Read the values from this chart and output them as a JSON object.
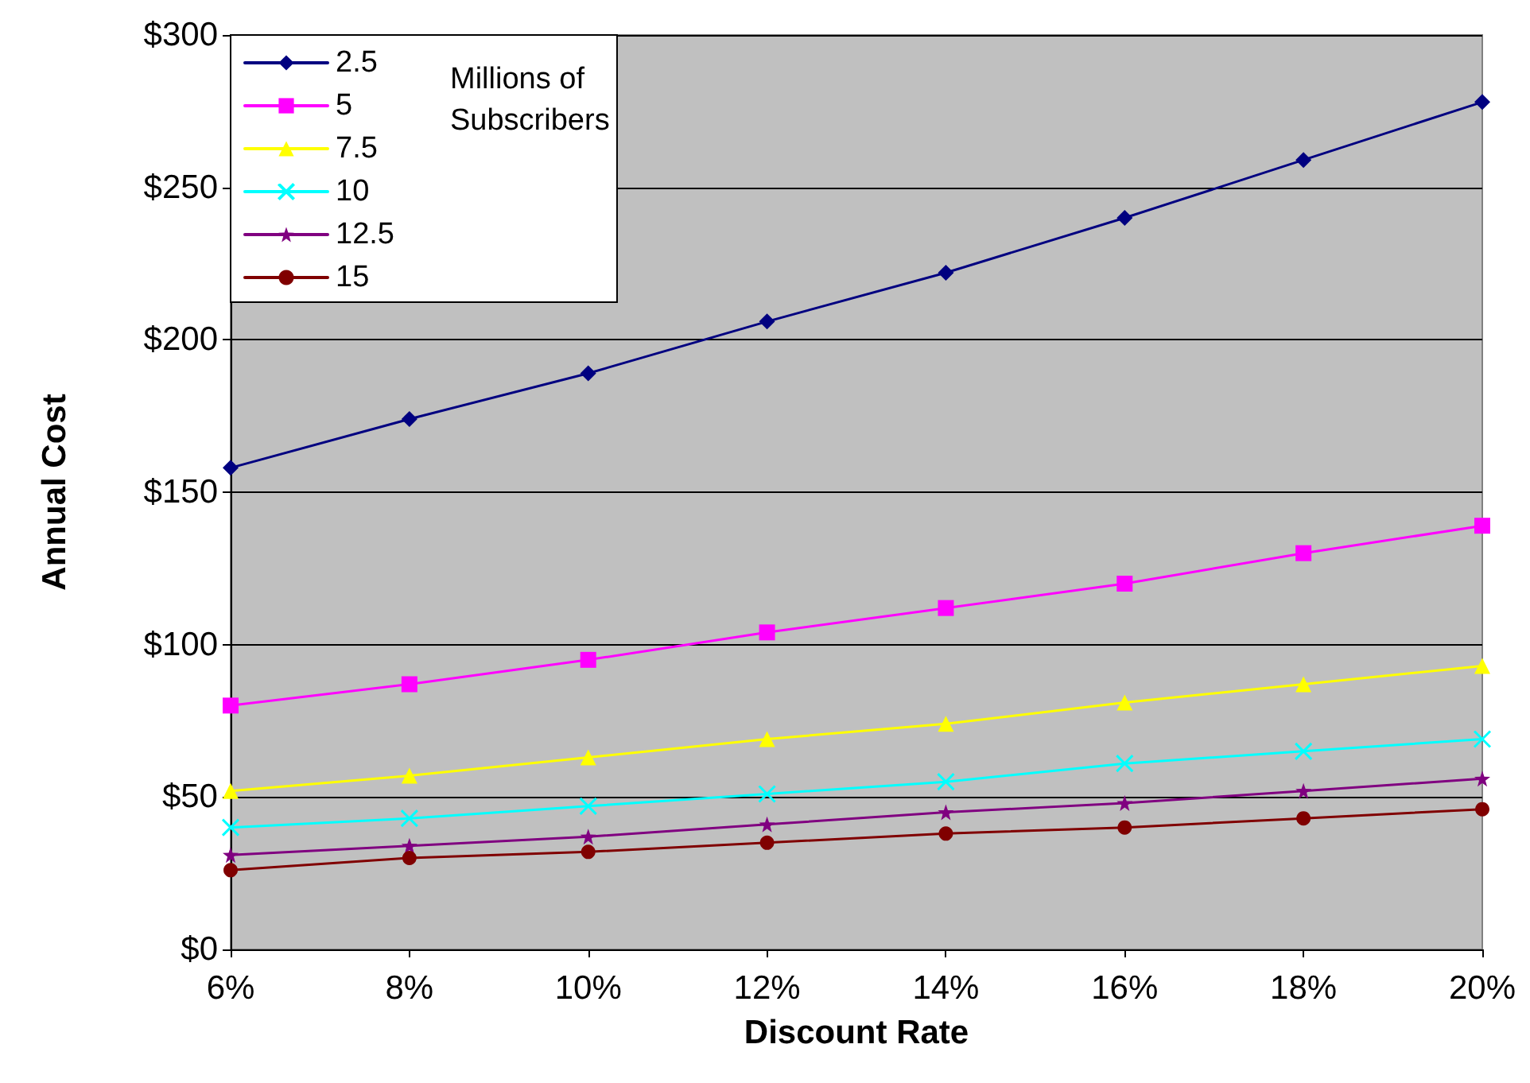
{
  "chart_data": {
    "type": "line",
    "xlabel": "Discount Rate",
    "ylabel": "Annual Cost",
    "legend_title": "Millions of Subscribers",
    "x": [
      6,
      8,
      10,
      12,
      14,
      16,
      18,
      20
    ],
    "xlim": [
      6,
      20
    ],
    "xticks": [
      {
        "value": 6,
        "label": "6%"
      },
      {
        "value": 8,
        "label": "8%"
      },
      {
        "value": 10,
        "label": "10%"
      },
      {
        "value": 12,
        "label": "12%"
      },
      {
        "value": 14,
        "label": "14%"
      },
      {
        "value": 16,
        "label": "16%"
      },
      {
        "value": 18,
        "label": "18%"
      },
      {
        "value": 20,
        "label": "20%"
      }
    ],
    "ylim": [
      0,
      300
    ],
    "yticks": [
      {
        "value": 0,
        "label": "$0"
      },
      {
        "value": 50,
        "label": "$50"
      },
      {
        "value": 100,
        "label": "$100"
      },
      {
        "value": 150,
        "label": "$150"
      },
      {
        "value": 200,
        "label": "$200"
      },
      {
        "value": 250,
        "label": "$250"
      },
      {
        "value": 300,
        "label": "$300"
      }
    ],
    "grid": "y",
    "legend": "top left",
    "line_style": "solid",
    "series": [
      {
        "name": "2.5",
        "color": "#000080",
        "marker": "diamond",
        "values": [
          158,
          174,
          189,
          206,
          222,
          240,
          259,
          278
        ]
      },
      {
        "name": "5",
        "color": "#ff00ff",
        "marker": "square",
        "values": [
          80,
          87,
          95,
          104,
          112,
          120,
          130,
          139
        ]
      },
      {
        "name": "7.5",
        "color": "#ffff00",
        "marker": "triangle",
        "values": [
          52,
          57,
          63,
          69,
          74,
          81,
          87,
          93
        ]
      },
      {
        "name": "10",
        "color": "#00ffff",
        "marker": "cross",
        "values": [
          40,
          43,
          47,
          51,
          55,
          61,
          65,
          69
        ]
      },
      {
        "name": "12.5",
        "color": "#800080",
        "marker": "star",
        "values": [
          31,
          34,
          37,
          41,
          45,
          48,
          52,
          56
        ]
      },
      {
        "name": "15",
        "color": "#800000",
        "marker": "circle",
        "values": [
          26,
          30,
          32,
          35,
          38,
          40,
          43,
          46
        ]
      }
    ]
  }
}
